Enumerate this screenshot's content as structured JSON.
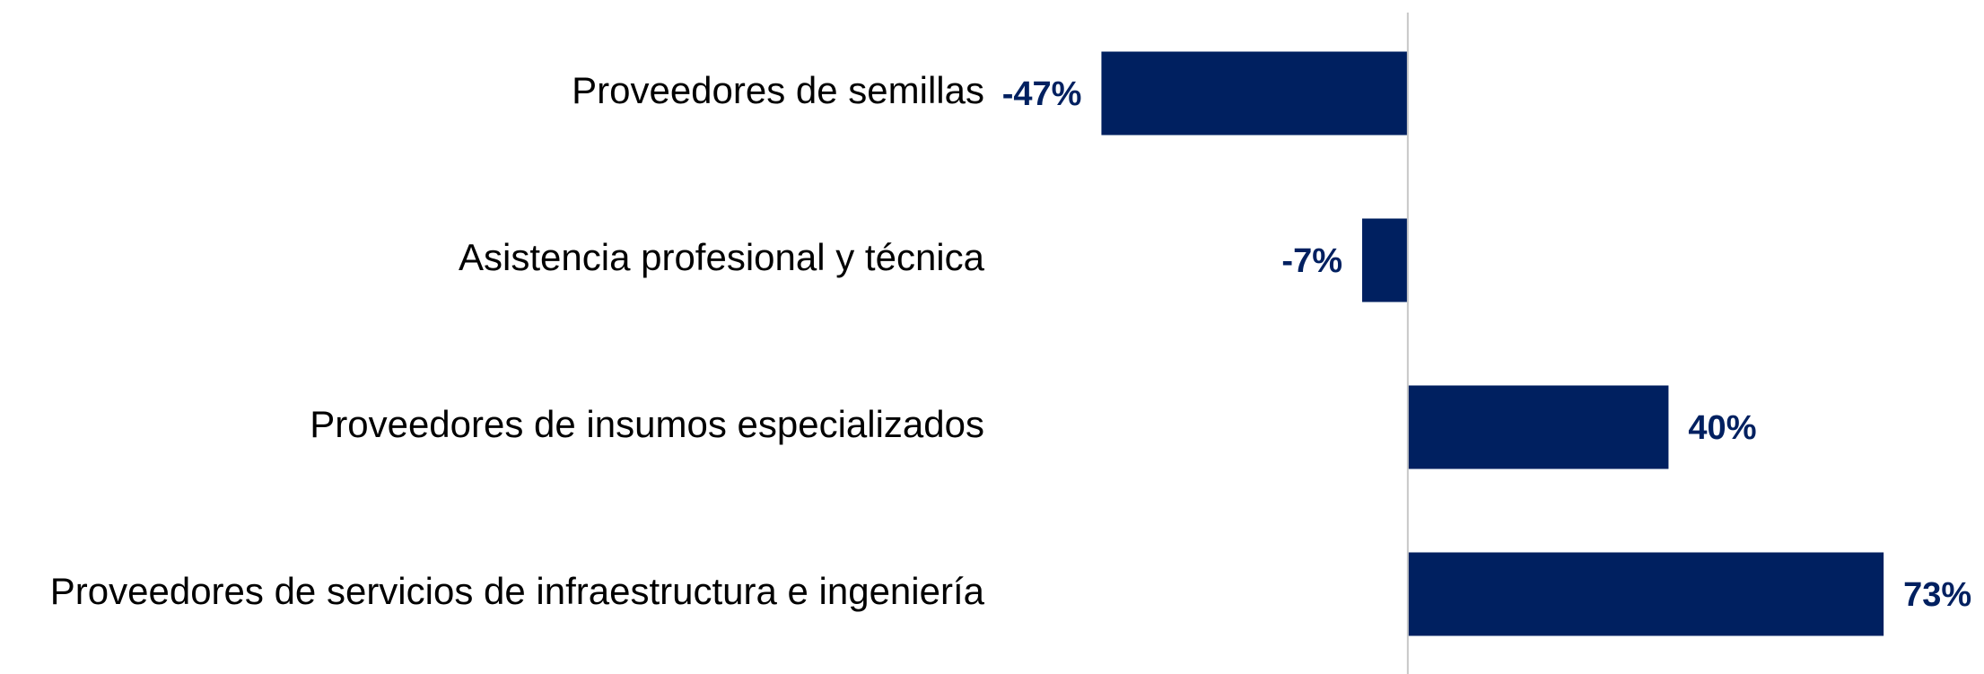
{
  "chart_data": {
    "type": "bar",
    "orientation": "horizontal",
    "categories": [
      "Proveedores de semillas",
      "Asistencia profesional y técnica",
      "Proveedores de insumos especializados",
      "Proveedores de servicios de infraestructura e ingeniería"
    ],
    "values": [
      -47,
      -7,
      40,
      73
    ],
    "value_labels": [
      "-47%",
      "-7%",
      "40%",
      "73%"
    ],
    "color": "#002060",
    "xlim": [
      -60,
      80
    ]
  }
}
